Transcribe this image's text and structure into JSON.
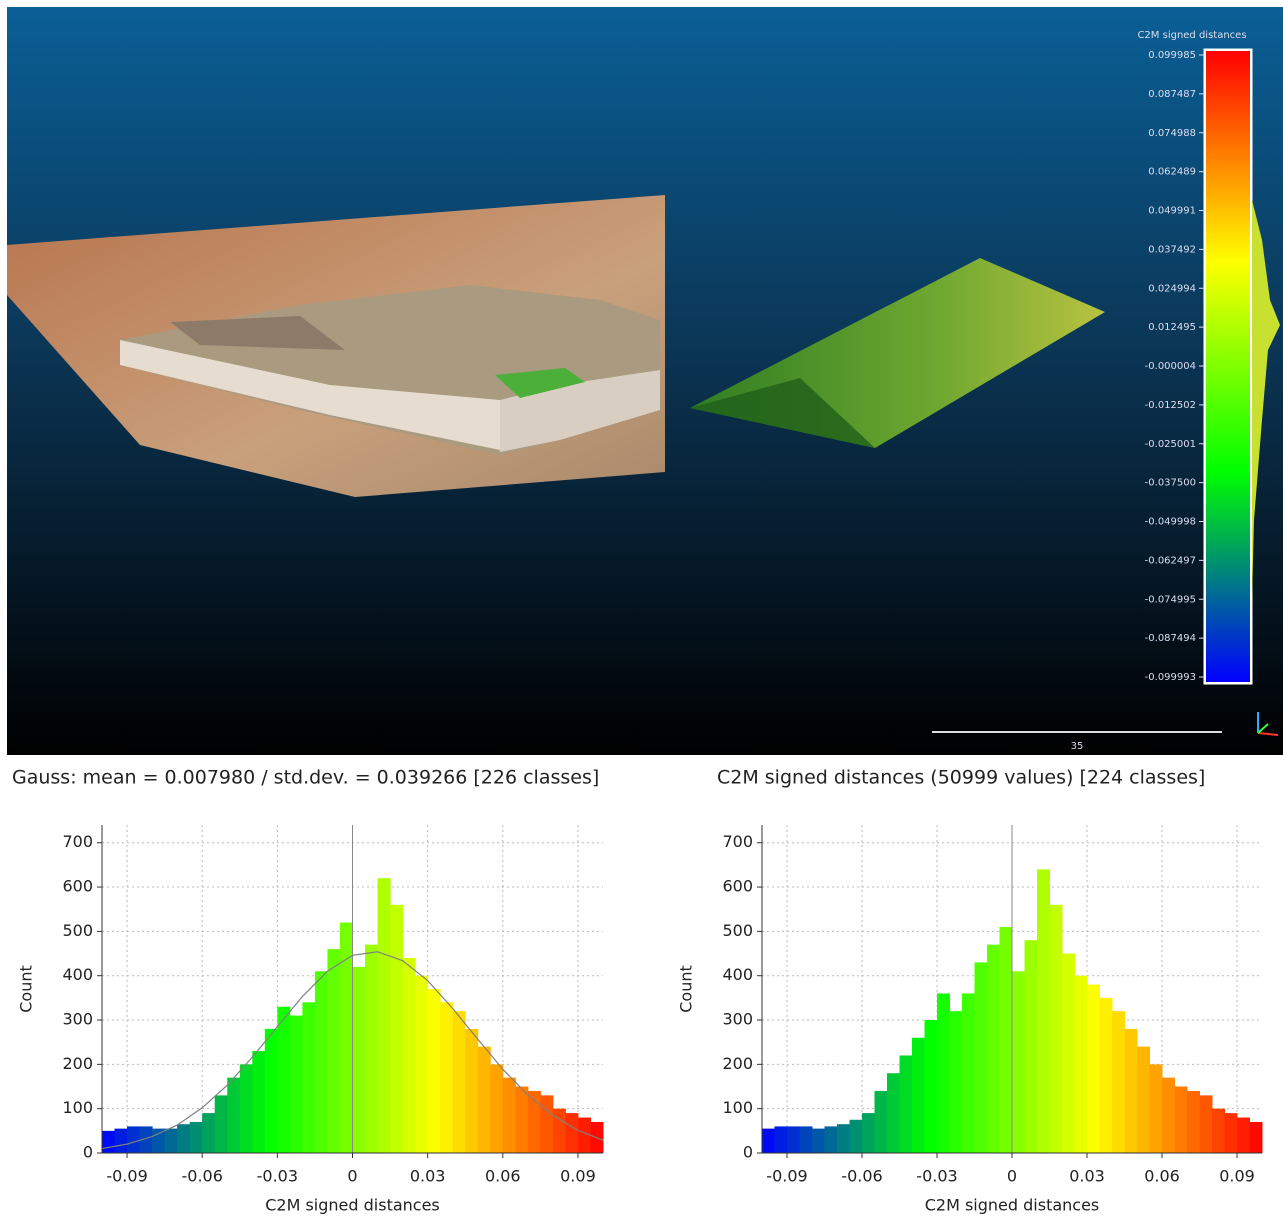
{
  "colormap": [
    "#0000ff",
    "#00ff00",
    "#ffff00",
    "#ff0000"
  ],
  "viewer": {
    "scale_title": "C2M signed distances",
    "scale_labels": [
      "0.099985",
      "0.087487",
      "0.074988",
      "0.062489",
      "0.049991",
      "0.037492",
      "0.024994",
      "0.012495",
      "-0.000004",
      "-0.012502",
      "-0.025001",
      "-0.037500",
      "-0.049998",
      "-0.062497",
      "-0.074995",
      "-0.087494",
      "-0.099993"
    ],
    "scale_bar_label": "35"
  },
  "chart_data": [
    {
      "type": "histogram",
      "title": "Gauss: mean = 0.007980 / std.dev. = 0.039266 [226 classes]",
      "xlabel": "C2M signed distances",
      "ylabel": "Count",
      "bins": [
        -0.1,
        -0.095,
        -0.09,
        -0.085,
        -0.08,
        -0.075,
        -0.07,
        -0.065,
        -0.06,
        -0.055,
        -0.05,
        -0.045,
        -0.04,
        -0.035,
        -0.03,
        -0.025,
        -0.02,
        -0.015,
        -0.01,
        -0.005,
        0,
        0.005,
        0.01,
        0.015,
        0.02,
        0.025,
        0.03,
        0.035,
        0.04,
        0.045,
        0.05,
        0.055,
        0.06,
        0.065,
        0.07,
        0.075,
        0.08,
        0.085,
        0.09,
        0.095,
        0.1
      ],
      "values": [
        50,
        55,
        60,
        60,
        55,
        55,
        65,
        70,
        90,
        130,
        170,
        200,
        230,
        280,
        330,
        310,
        340,
        410,
        460,
        520,
        420,
        470,
        620,
        560,
        440,
        400,
        370,
        340,
        320,
        280,
        240,
        200,
        170,
        150,
        140,
        130,
        100,
        90,
        80,
        70
      ],
      "fit": {
        "color": "#808080",
        "x": [
          -0.1,
          -0.09,
          -0.08,
          -0.07,
          -0.06,
          -0.05,
          -0.04,
          -0.03,
          -0.02,
          -0.01,
          0,
          0.01,
          0.02,
          0.03,
          0.04,
          0.05,
          0.06,
          0.07,
          0.08,
          0.09,
          0.1
        ],
        "values": [
          10,
          20,
          37,
          63,
          102,
          153,
          216,
          285,
          353,
          410,
          446,
          454,
          434,
          389,
          326,
          257,
          189,
          131,
          85,
          51,
          29
        ]
      },
      "xlim": [
        -0.1,
        0.1
      ],
      "ylim": [
        0,
        740
      ],
      "xticks": [
        -0.09,
        -0.06,
        -0.03,
        0,
        0.03,
        0.06,
        0.09
      ],
      "yticks": [
        0,
        100,
        200,
        300,
        400,
        500,
        600,
        700
      ],
      "grid": true
    },
    {
      "type": "histogram",
      "title": "C2M signed distances (50999 values)  [224 classes]",
      "xlabel": "C2M signed distances",
      "ylabel": "Count",
      "bins": [
        -0.1,
        -0.095,
        -0.09,
        -0.085,
        -0.08,
        -0.075,
        -0.07,
        -0.065,
        -0.06,
        -0.055,
        -0.05,
        -0.045,
        -0.04,
        -0.035,
        -0.03,
        -0.025,
        -0.02,
        -0.015,
        -0.01,
        -0.005,
        0,
        0.005,
        0.01,
        0.015,
        0.02,
        0.025,
        0.03,
        0.035,
        0.04,
        0.045,
        0.05,
        0.055,
        0.06,
        0.065,
        0.07,
        0.075,
        0.08,
        0.085,
        0.09,
        0.095,
        0.1
      ],
      "values": [
        55,
        60,
        60,
        60,
        55,
        60,
        65,
        75,
        90,
        140,
        180,
        220,
        260,
        300,
        360,
        320,
        360,
        430,
        470,
        510,
        410,
        480,
        640,
        560,
        450,
        400,
        380,
        350,
        320,
        280,
        240,
        200,
        170,
        150,
        140,
        130,
        100,
        90,
        80,
        70
      ],
      "xlim": [
        -0.1,
        0.1
      ],
      "ylim": [
        0,
        740
      ],
      "xticks": [
        -0.09,
        -0.06,
        -0.03,
        0,
        0.03,
        0.06,
        0.09
      ],
      "yticks": [
        0,
        100,
        200,
        300,
        400,
        500,
        600,
        700
      ],
      "grid": true
    }
  ]
}
